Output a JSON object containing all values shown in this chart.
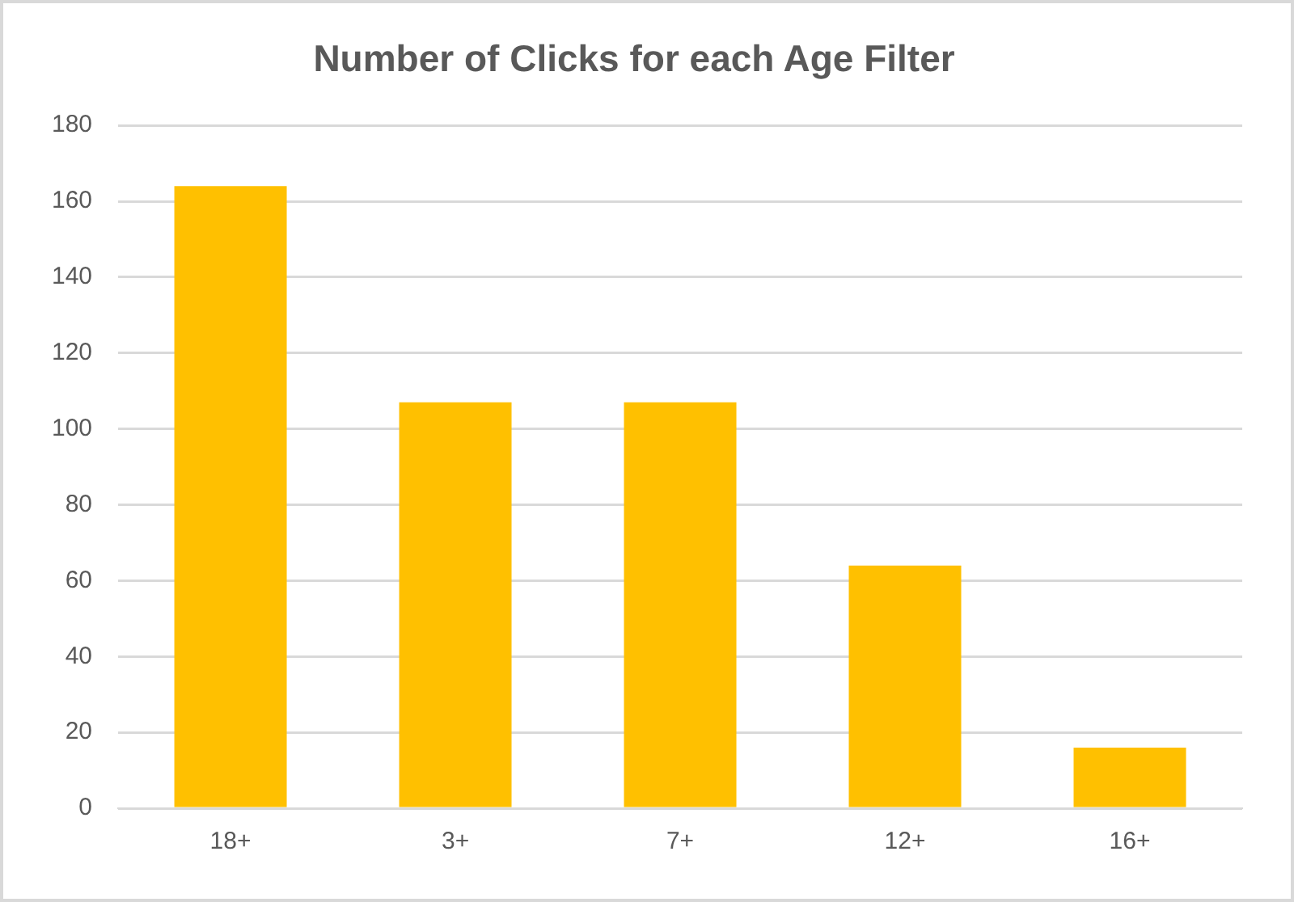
{
  "chart_data": {
    "type": "bar",
    "title": "Number of Clicks for each Age Filter",
    "categories": [
      "18+",
      "3+",
      "7+",
      "12+",
      "16+"
    ],
    "values": [
      164,
      107,
      107,
      64,
      16
    ],
    "color": "#ffc000",
    "ylim": [
      0,
      180
    ],
    "yticks": [
      0,
      20,
      40,
      60,
      80,
      100,
      120,
      140,
      160,
      180
    ],
    "grid": "y",
    "legend": false
  }
}
